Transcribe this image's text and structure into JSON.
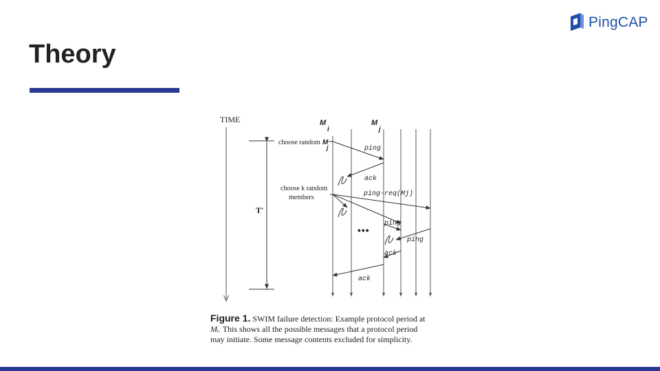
{
  "logo": {
    "text": "PingCAP",
    "icon": "pingcap-logo-icon"
  },
  "slide": {
    "title": "Theory"
  },
  "colors": {
    "accent": "#2a3990",
    "brand": "#1f4fa8",
    "title": "#222222"
  },
  "figure": {
    "time_label": "TIME",
    "period_label": "T'",
    "member_i": {
      "base": "M",
      "sub": "i"
    },
    "member_j": {
      "base": "M",
      "sub": "j"
    },
    "choose_random": {
      "prefix": "choose random",
      "base": "M",
      "sub": "j"
    },
    "choose_k_line1": "choose k random",
    "choose_k_line2": "members",
    "msg_ping": "ping",
    "msg_ack": "ack",
    "msg_ping_req": "ping-req(Mj)",
    "msg_ping2": "ping",
    "msg_ping3": "ping",
    "msg_ack2": "ack",
    "msg_ack3": "ack",
    "ellipsis": "•••",
    "failure_icon": "lost-message-icon"
  },
  "caption": {
    "label": "Figure 1.",
    "line1": "SWIM failure detection: Example protocol period at",
    "math": "Mᵢ.",
    "line2": "This shows all the possible messages that a protocol period",
    "line3": "may initiate. Some message contents excluded for simplicity."
  }
}
